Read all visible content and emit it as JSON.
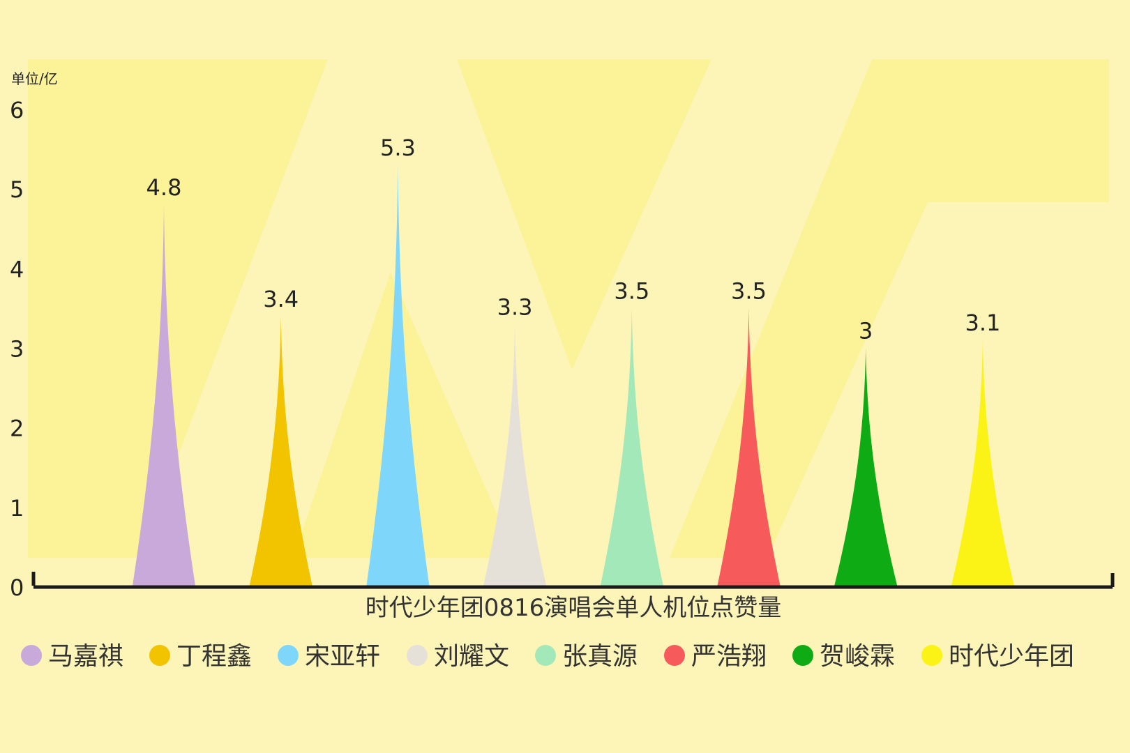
{
  "chart_data": {
    "type": "bar",
    "title": "",
    "xlabel": "时代少年团0816演唱会单人机位点赞量",
    "ylabel": "单位/亿",
    "ylim": [
      0,
      6
    ],
    "y_ticks": [
      "0",
      "1",
      "2",
      "3",
      "4",
      "5",
      "6"
    ],
    "grid": false,
    "legend_position": "bottom",
    "categories": [
      "马嘉祺",
      "丁程鑫",
      "宋亚轩",
      "刘耀文",
      "张真源",
      "严浩翔",
      "贺峻霖",
      "时代少年团"
    ],
    "values": [
      4.8,
      3.4,
      5.3,
      3.3,
      3.5,
      3.5,
      3,
      3.1
    ],
    "value_labels": [
      "4.8",
      "3.4",
      "5.3",
      "3.3",
      "3.5",
      "3.5",
      "3",
      "3.1"
    ],
    "colors": [
      "#c9a8da",
      "#f2c400",
      "#7fd6fb",
      "#e5e1d8",
      "#a3e8b8",
      "#f65a5a",
      "#0fab14",
      "#fbf316"
    ]
  }
}
